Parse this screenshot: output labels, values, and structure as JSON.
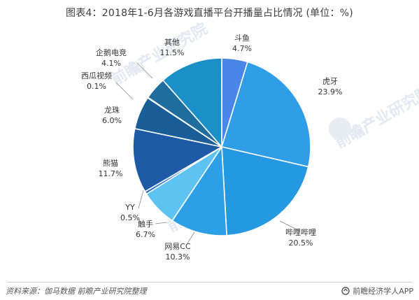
{
  "title": "图表4：2018年1-6月各游戏直播平台开播量占比情况 (单位：%)",
  "source": "资料来源：伽马数据 前瞻产业研究院整理",
  "brand": "前瞻经济学人APP",
  "watermark": "前瞻产业研究院",
  "chart_data": {
    "type": "pie",
    "title": "图表4：2018年1-6月各游戏直播平台开播量占比情况 (单位：%)",
    "unit": "%",
    "start_angle_deg": 0,
    "direction": "clockwise",
    "slices": [
      {
        "name": "斗鱼",
        "value": 4.7,
        "label": "4.7%",
        "color": "#4a86e8"
      },
      {
        "name": "虎牙",
        "value": 23.9,
        "label": "23.9%",
        "color": "#2f9ee6"
      },
      {
        "name": "哔哩哔哩",
        "value": 20.5,
        "label": "20.5%",
        "color": "#2499e2"
      },
      {
        "name": "网易CC",
        "value": 10.3,
        "label": "10.3%",
        "color": "#2c9fe6"
      },
      {
        "name": "触手",
        "value": 6.7,
        "label": "6.7%",
        "color": "#5ec3f2"
      },
      {
        "name": "YY",
        "value": 0.5,
        "label": "0.5%",
        "color": "#2b6fc0"
      },
      {
        "name": "熊猫",
        "value": 11.7,
        "label": "11.7%",
        "color": "#1e5aa6"
      },
      {
        "name": "龙珠",
        "value": 6.0,
        "label": "6.0%",
        "color": "#1a5e99"
      },
      {
        "name": "西瓜视频",
        "value": 0.1,
        "label": "0.1%",
        "color": "#226fae"
      },
      {
        "name": "企鹅电竞",
        "value": 4.1,
        "label": "4.1%",
        "color": "#1f6e9e"
      },
      {
        "name": "其他",
        "value": 11.5,
        "label": "11.5%",
        "color": "#1a8fc8"
      }
    ]
  }
}
